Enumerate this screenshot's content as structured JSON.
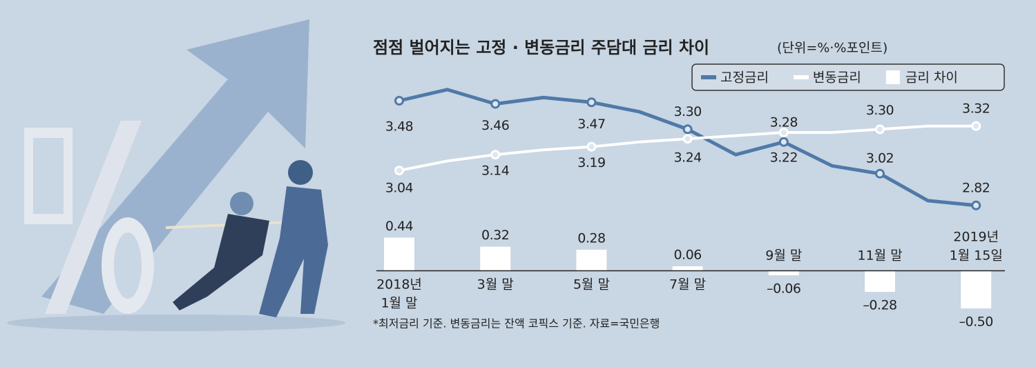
{
  "chart_data": {
    "type": "line",
    "title": "점점 벌어지는 고정 · 변동금리 주담대 금리 차이",
    "subtitle": "(단위=%·%포인트)",
    "footnote": "*최저금리 기준. 변동금리는 잔액 코픽스 기준. 자료=국민은행",
    "categories": [
      "2018년\n1월 말",
      null,
      "3월 말",
      null,
      "5월 말",
      null,
      "7월 말",
      null,
      "9월 말",
      null,
      "11월 말",
      null,
      "2019년\n1월 15일"
    ],
    "series": [
      {
        "name": "고정금리",
        "color": "#4f79a8",
        "type": "line",
        "values": [
          3.48,
          3.55,
          3.46,
          3.5,
          3.47,
          3.41,
          3.3,
          3.14,
          3.22,
          3.07,
          3.02,
          2.85,
          2.82
        ],
        "value_labels": [
          "3.48",
          null,
          "3.46",
          null,
          "3.47",
          null,
          "3.30",
          null,
          "3.22",
          null,
          "3.02",
          null,
          "2.82"
        ]
      },
      {
        "name": "변동금리",
        "color": "#ffffff",
        "type": "line",
        "values": [
          3.04,
          3.1,
          3.14,
          3.17,
          3.19,
          3.22,
          3.24,
          3.26,
          3.28,
          3.28,
          3.3,
          3.32,
          3.32
        ],
        "value_labels": [
          "3.04",
          null,
          "3.14",
          null,
          "3.19",
          null,
          "3.24",
          null,
          "3.28",
          null,
          "3.30",
          null,
          "3.32"
        ]
      },
      {
        "name": "금리 차이",
        "color": "#ffffff",
        "type": "bar",
        "axis": "y2",
        "values": [
          0.44,
          null,
          0.32,
          null,
          0.28,
          null,
          0.06,
          null,
          -0.06,
          null,
          -0.28,
          null,
          -0.5
        ],
        "value_labels": [
          "0.44",
          null,
          "0.32",
          null,
          "0.28",
          null,
          "0.06",
          null,
          "–0.06",
          null,
          "–0.28",
          null,
          "–0.50"
        ]
      }
    ],
    "ylim": [
      2.68,
      3.68
    ],
    "y2lim": [
      -0.7,
      0.6
    ]
  }
}
